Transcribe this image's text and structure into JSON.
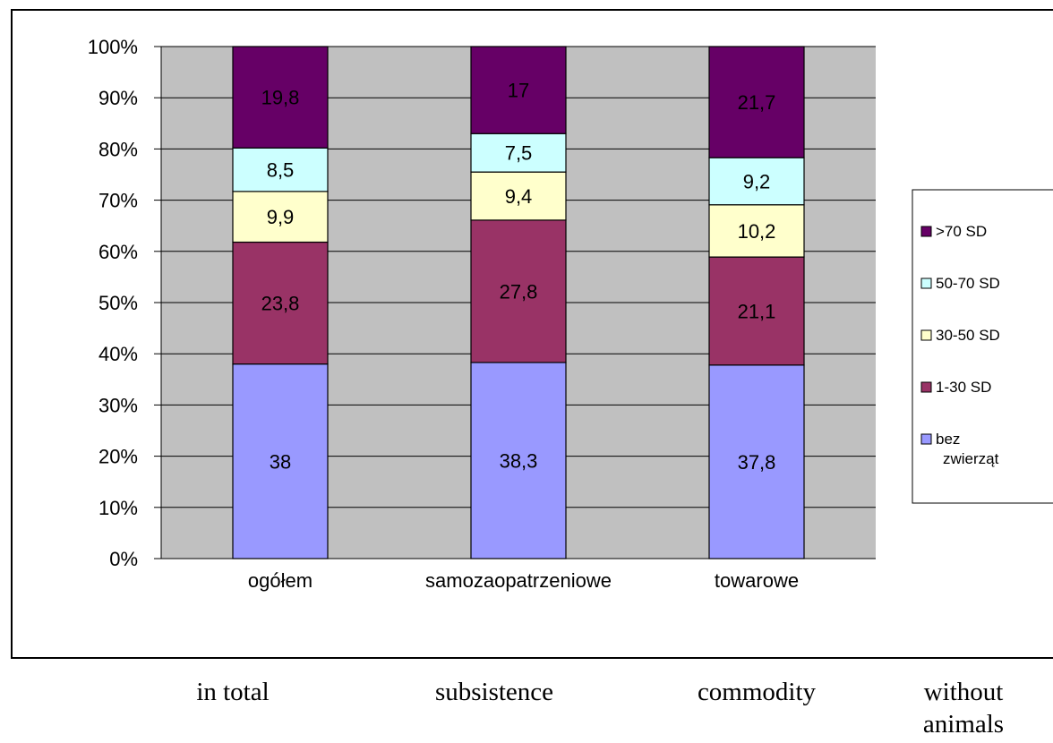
{
  "chart_data": {
    "type": "bar",
    "stacked": true,
    "percent_axis": true,
    "ylim": [
      0,
      100
    ],
    "yticks": [
      "0%",
      "10%",
      "20%",
      "30%",
      "40%",
      "50%",
      "60%",
      "70%",
      "80%",
      "90%",
      "100%"
    ],
    "grid": true,
    "legend_position": "right",
    "categories": [
      "ogółem",
      "samozaopatrzeniowe",
      "towarowe"
    ],
    "series": [
      {
        "name": "bez zwierząt",
        "color": "#9999ff",
        "values": [
          38,
          38.3,
          37.8
        ],
        "labels": [
          "38",
          "38,3",
          "37,8"
        ]
      },
      {
        "name": "1-30 SD",
        "color": "#993366",
        "values": [
          23.8,
          27.8,
          21.1
        ],
        "labels": [
          "23,8",
          "27,8",
          "21,1"
        ]
      },
      {
        "name": "30-50 SD",
        "color": "#ffffcc",
        "values": [
          9.9,
          9.4,
          10.2
        ],
        "labels": [
          "9,9",
          "9,4",
          "10,2"
        ]
      },
      {
        "name": "50-70 SD",
        "color": "#ccffff",
        "values": [
          8.5,
          7.5,
          9.2
        ],
        "labels": [
          "8,5",
          "7,5",
          "9,2"
        ]
      },
      {
        "name": ">70 SD",
        "color": "#660066",
        "values": [
          19.8,
          17,
          21.7
        ],
        "labels": [
          "19,8",
          "17",
          "21,7"
        ]
      }
    ],
    "plot_background": "#c0c0c0"
  },
  "translations": {
    "in_total": "in total",
    "subsistence": "subsistence",
    "commodity": "commodity",
    "without_animals": [
      "without",
      "animals"
    ]
  }
}
